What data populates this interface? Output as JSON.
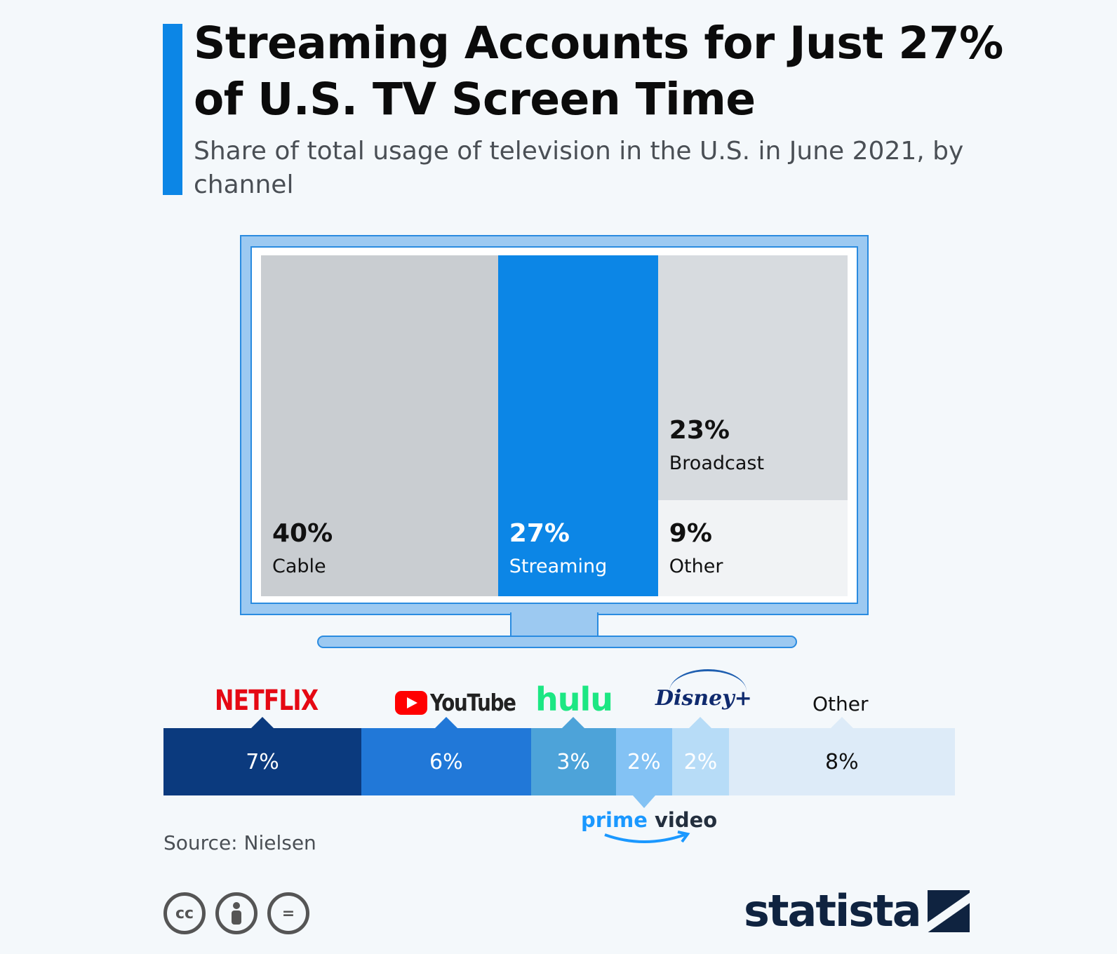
{
  "header": {
    "title": "Streaming Accounts for Just 27% of U.S. TV Screen Time",
    "subtitle": "Share of total usage of television in the U.S. in June 2021, by channel"
  },
  "chart_data": [
    {
      "type": "treemap",
      "title": "",
      "unit": "%",
      "categories": [
        "Cable",
        "Streaming",
        "Broadcast",
        "Other"
      ],
      "values": [
        40,
        27,
        23,
        9
      ],
      "value_labels": [
        "40%",
        "27%",
        "23%",
        "9%"
      ],
      "colors": {
        "Cable": "#c9cdd1",
        "Streaming": "#0c86e6",
        "Broadcast": "#d7dbdf",
        "Other": "#f1f3f5"
      }
    },
    {
      "type": "bar",
      "subtype": "stacked-horizontal",
      "title": "",
      "unit": "%",
      "categories": [
        "Netflix",
        "YouTube",
        "Hulu",
        "Prime Video",
        "Disney+",
        "Other"
      ],
      "values": [
        7,
        6,
        3,
        2,
        2,
        8
      ],
      "value_labels": [
        "7%",
        "6%",
        "3%",
        "2%",
        "2%",
        "8%"
      ],
      "colors": [
        "#0b3a7e",
        "#2178d8",
        "#4da3d9",
        "#83c2f4",
        "#b7dcf7",
        "#ddebf8"
      ]
    }
  ],
  "logos": {
    "netflix": "NETFLIX",
    "youtube": "YouTube",
    "hulu": "hulu",
    "disney": "Disney+",
    "prime_a": "prime",
    "prime_b": "video",
    "other": "Other"
  },
  "footer": {
    "source": "Source: Nielsen",
    "brand": "statista",
    "license_icons": [
      "cc-icon",
      "by-icon",
      "nd-icon"
    ],
    "cc_text": "cc",
    "nd_text": "="
  }
}
